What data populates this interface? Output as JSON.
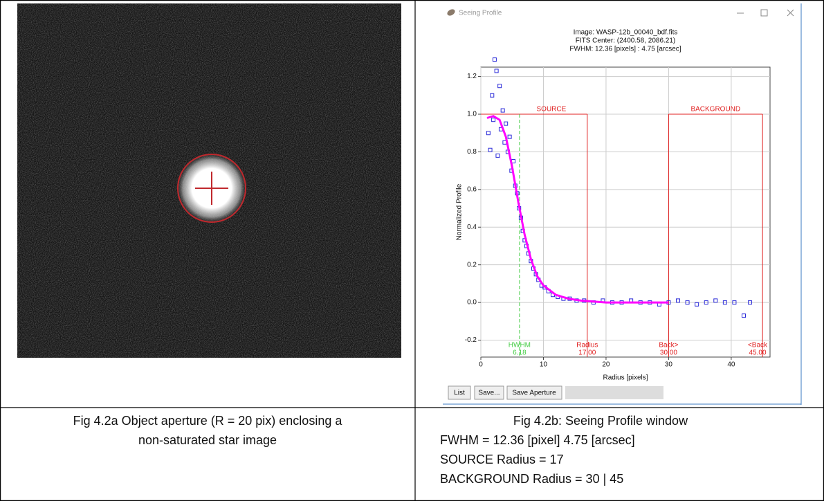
{
  "left_cell": {
    "caption": [
      "Fig 4.2a Object aperture (R = 20 pix) enclosing a",
      "non-saturated star image"
    ]
  },
  "window": {
    "title": "Seeing Profile",
    "buttons": [
      "List",
      "Save...",
      "Save Aperture"
    ]
  },
  "chart_data": {
    "type": "scatter",
    "title": [
      "Image: WASP-12b_00040_bdf.fits",
      "FITS Center: (2400.58,  2086.21)",
      "FWHM: 12.36 [pixels] : 4.75 [arcsec]"
    ],
    "x_label": "Radius [pixels]",
    "y_label": "Normalized Profile",
    "xlim": [
      0,
      46.2
    ],
    "ylim": [
      -0.29,
      1.25
    ],
    "xticks": [
      0,
      10,
      20,
      30,
      40
    ],
    "yticks": [
      -0.2,
      {
        "value": 0,
        "label": "0.0"
      },
      0.2,
      0.4,
      0.6,
      0.8,
      {
        "value": 1,
        "label": "1.0"
      },
      1.2
    ],
    "grid": true,
    "points": {
      "color": "#2a2ad8",
      "x": [
        1.2,
        1.5,
        1.8,
        2.0,
        2.2,
        2.5,
        2.7,
        3.0,
        3.2,
        3.5,
        3.8,
        4.0,
        4.3,
        4.6,
        4.9,
        5.2,
        5.5,
        5.8,
        6.1,
        6.4,
        6.7,
        7.0,
        7.3,
        7.6,
        8.0,
        8.4,
        8.8,
        9.2,
        9.7,
        10.2,
        10.8,
        11.5,
        12.3,
        13.2,
        14.2,
        15.3,
        16.5,
        18,
        19.5,
        21,
        22.5,
        24,
        25.5,
        27,
        28.5,
        30,
        31.5,
        33,
        34.5,
        36,
        37.5,
        39,
        40.5,
        42,
        43
      ],
      "y": [
        0.9,
        0.81,
        1.1,
        0.97,
        1.29,
        1.23,
        0.78,
        1.15,
        0.92,
        1.02,
        0.85,
        0.95,
        0.8,
        0.88,
        0.7,
        0.75,
        0.62,
        0.58,
        0.5,
        0.45,
        0.38,
        0.33,
        0.3,
        0.26,
        0.22,
        0.18,
        0.15,
        0.12,
        0.09,
        0.08,
        0.06,
        0.04,
        0.03,
        0.02,
        0.02,
        0.01,
        0.01,
        0,
        0.01,
        0,
        0,
        0.01,
        0,
        0,
        -0.01,
        0,
        0.01,
        0,
        -0.01,
        0,
        0.01,
        0,
        0,
        -0.07,
        0
      ]
    },
    "fit": {
      "color": "#ff00ff",
      "x": [
        1,
        2,
        3,
        4,
        5,
        6,
        7,
        8,
        9,
        10,
        12,
        14,
        16,
        18,
        20,
        25,
        30
      ],
      "y": [
        0.98,
        0.99,
        0.97,
        0.88,
        0.72,
        0.53,
        0.36,
        0.23,
        0.14,
        0.09,
        0.04,
        0.02,
        0.01,
        0.005,
        0,
        0,
        0
      ]
    },
    "markers": [
      {
        "label": "HWHM",
        "value": 6.18,
        "value_label": "6.18",
        "color": "#44cc44"
      },
      {
        "label": "Radius",
        "value": 17,
        "value_label": "17.00",
        "color": "#e02020"
      },
      {
        "label": "Back>",
        "value": 30,
        "value_label": "30.00",
        "color": "#e02020"
      },
      {
        "label": "<Back",
        "value": 45,
        "value_label": "45.00",
        "color": "#e02020"
      }
    ],
    "regions": [
      {
        "label": "SOURCE",
        "from": 0,
        "to": 17,
        "level": 1
      },
      {
        "label": "BACKGROUND",
        "from": 30,
        "to": 45,
        "level": 1
      }
    ]
  },
  "right_cell": {
    "caption": [
      "Fig 4.2b: Seeing Profile window",
      "FWHM = 12.36 [pixel] 4.75 [arcsec]",
      "SOURCE Radius =  17",
      "BACKGROUND Radius = 30 | 45"
    ]
  }
}
